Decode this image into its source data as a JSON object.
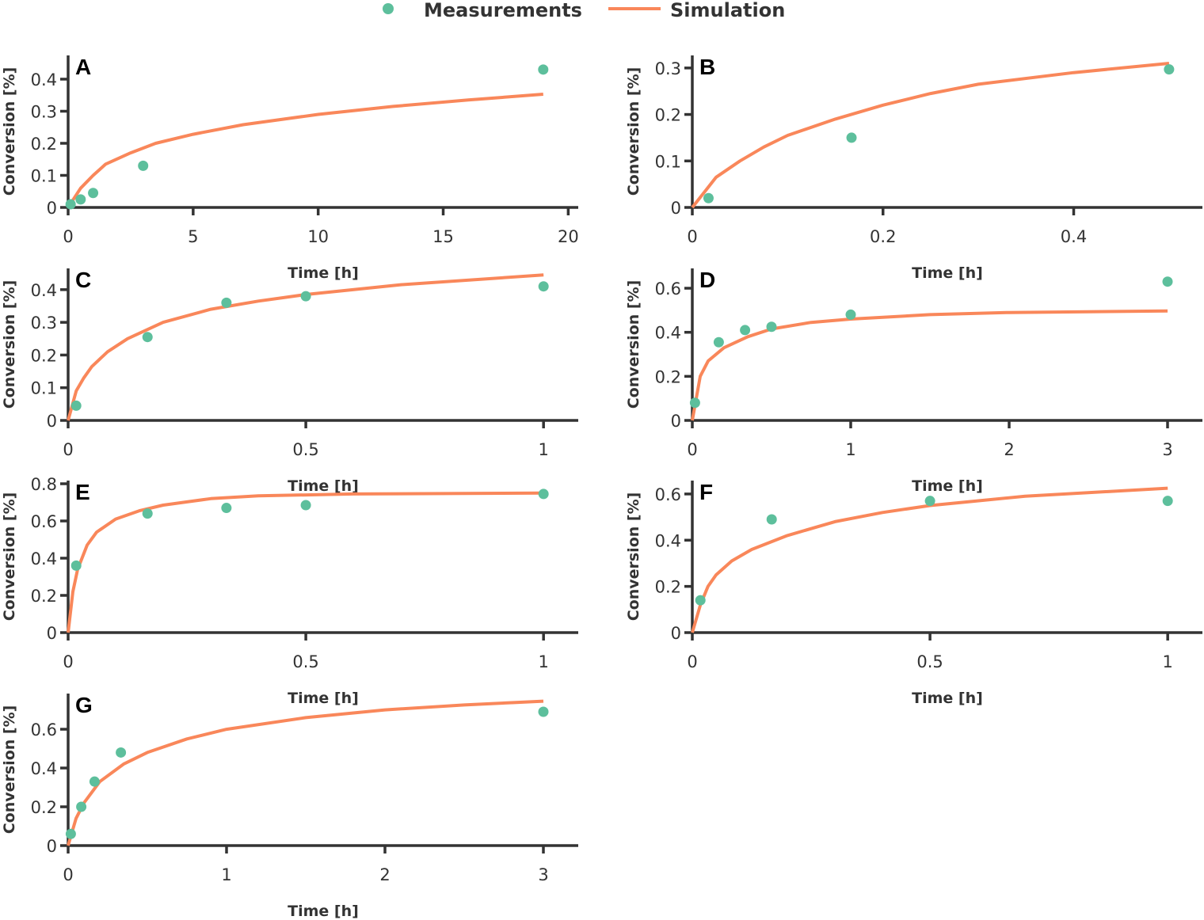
{
  "colors": {
    "measurements": "#5dbf9c",
    "simulation": "#f9875a",
    "axis": "#333333"
  },
  "chart_data": {
    "type": "scatter+line",
    "legend": {
      "placement": "top-center",
      "entries": [
        "Measurements",
        "Simulation"
      ]
    },
    "panels": [
      {
        "label": "A",
        "xlabel": "Time [h]",
        "ylabel": "Conversion [%]",
        "xlim": [
          0,
          20.4
        ],
        "ylim": [
          0,
          0.474
        ],
        "xticks": [
          0,
          5,
          10,
          15,
          20
        ],
        "xtick_labels": [
          "0",
          "5",
          "10",
          "15",
          "20"
        ],
        "yticks": [
          0,
          0.1,
          0.2,
          0.3,
          0.4
        ],
        "ytick_labels": [
          "0",
          "0.1",
          "0.2",
          "0.3",
          "0.4"
        ],
        "measurements": [
          [
            0.1,
            0.01
          ],
          [
            0.5,
            0.025
          ],
          [
            1,
            0.045
          ],
          [
            3,
            0.13
          ],
          [
            19,
            0.43
          ]
        ],
        "simulation": [
          [
            0,
            0
          ],
          [
            0.5,
            0.06
          ],
          [
            1,
            0.1
          ],
          [
            1.5,
            0.135
          ],
          [
            2.5,
            0.17
          ],
          [
            3.5,
            0.2
          ],
          [
            5,
            0.228
          ],
          [
            7,
            0.258
          ],
          [
            10,
            0.29
          ],
          [
            13,
            0.315
          ],
          [
            16,
            0.335
          ],
          [
            19,
            0.353
          ]
        ]
      },
      {
        "label": "B",
        "xlabel": "Time [h]",
        "ylabel": "Conversion [%]",
        "xlim": [
          0,
          0.535
        ],
        "ylim": [
          0,
          0.327
        ],
        "xticks": [
          0,
          0.2,
          0.4
        ],
        "xtick_labels": [
          "0",
          "0.2",
          "0.4"
        ],
        "yticks": [
          0,
          0.1,
          0.2,
          0.3
        ],
        "ytick_labels": [
          "0",
          "0.1",
          "0.2",
          "0.3"
        ],
        "measurements": [
          [
            0.017,
            0.02
          ],
          [
            0.167,
            0.15
          ],
          [
            0.5,
            0.297
          ]
        ],
        "simulation": [
          [
            0,
            0
          ],
          [
            0.025,
            0.065
          ],
          [
            0.05,
            0.1
          ],
          [
            0.075,
            0.13
          ],
          [
            0.1,
            0.155
          ],
          [
            0.15,
            0.19
          ],
          [
            0.2,
            0.22
          ],
          [
            0.25,
            0.245
          ],
          [
            0.3,
            0.265
          ],
          [
            0.4,
            0.29
          ],
          [
            0.5,
            0.31
          ]
        ]
      },
      {
        "label": "C",
        "xlabel": "Time [h]",
        "ylabel": "Conversion [%]",
        "xlim": [
          0,
          1.073
        ],
        "ylim": [
          0,
          0.465
        ],
        "xticks": [
          0,
          0.5,
          1
        ],
        "xtick_labels": [
          "0",
          "0.5",
          "1"
        ],
        "yticks": [
          0,
          0.1,
          0.2,
          0.3,
          0.4
        ],
        "ytick_labels": [
          "0",
          "0.1",
          "0.2",
          "0.3",
          "0.4"
        ],
        "measurements": [
          [
            0.017,
            0.045
          ],
          [
            0.167,
            0.255
          ],
          [
            0.333,
            0.36
          ],
          [
            0.5,
            0.38
          ],
          [
            1,
            0.41
          ]
        ],
        "simulation": [
          [
            0,
            0
          ],
          [
            0.017,
            0.09
          ],
          [
            0.033,
            0.13
          ],
          [
            0.05,
            0.165
          ],
          [
            0.083,
            0.21
          ],
          [
            0.125,
            0.25
          ],
          [
            0.2,
            0.3
          ],
          [
            0.3,
            0.34
          ],
          [
            0.4,
            0.365
          ],
          [
            0.5,
            0.385
          ],
          [
            0.7,
            0.415
          ],
          [
            1,
            0.445
          ]
        ]
      },
      {
        "label": "D",
        "xlabel": "Time [h]",
        "ylabel": "Conversion [%]",
        "xlim": [
          0,
          3.22
        ],
        "ylim": [
          0,
          0.69
        ],
        "xticks": [
          0,
          1,
          2,
          3
        ],
        "xtick_labels": [
          "0",
          "1",
          "2",
          "3"
        ],
        "yticks": [
          0,
          0.2,
          0.4,
          0.6
        ],
        "ytick_labels": [
          "0",
          "0.2",
          "0.4",
          "0.6"
        ],
        "measurements": [
          [
            0.017,
            0.08
          ],
          [
            0.167,
            0.355
          ],
          [
            0.333,
            0.41
          ],
          [
            0.5,
            0.425
          ],
          [
            1,
            0.48
          ],
          [
            3,
            0.63
          ]
        ],
        "simulation": [
          [
            0,
            0
          ],
          [
            0.05,
            0.2
          ],
          [
            0.1,
            0.27
          ],
          [
            0.2,
            0.33
          ],
          [
            0.35,
            0.38
          ],
          [
            0.5,
            0.415
          ],
          [
            0.75,
            0.445
          ],
          [
            1,
            0.46
          ],
          [
            1.5,
            0.48
          ],
          [
            2,
            0.49
          ],
          [
            3,
            0.497
          ]
        ]
      },
      {
        "label": "E",
        "xlabel": "Time [h]",
        "ylabel": "Conversion [%]",
        "xlim": [
          0,
          1.073
        ],
        "ylim": [
          0,
          0.817
        ],
        "xticks": [
          0,
          0.5,
          1
        ],
        "xtick_labels": [
          "0",
          "0.5",
          "1"
        ],
        "yticks": [
          0,
          0.2,
          0.4,
          0.6,
          0.8
        ],
        "ytick_labels": [
          "0",
          "0.2",
          "0.4",
          "0.6",
          "0.8"
        ],
        "measurements": [
          [
            0.017,
            0.36
          ],
          [
            0.167,
            0.64
          ],
          [
            0.333,
            0.67
          ],
          [
            0.5,
            0.685
          ],
          [
            1,
            0.745
          ]
        ],
        "simulation": [
          [
            0,
            0
          ],
          [
            0.01,
            0.22
          ],
          [
            0.02,
            0.34
          ],
          [
            0.04,
            0.47
          ],
          [
            0.06,
            0.54
          ],
          [
            0.1,
            0.61
          ],
          [
            0.15,
            0.655
          ],
          [
            0.2,
            0.685
          ],
          [
            0.3,
            0.72
          ],
          [
            0.4,
            0.735
          ],
          [
            0.6,
            0.745
          ],
          [
            1,
            0.75
          ]
        ]
      },
      {
        "label": "F",
        "xlabel": "Time [h]",
        "ylabel": "Conversion [%]",
        "xlim": [
          0,
          1.073
        ],
        "ylim": [
          0,
          0.658
        ],
        "xticks": [
          0,
          0.5,
          1
        ],
        "xtick_labels": [
          "0",
          "0.5",
          "1"
        ],
        "yticks": [
          0,
          0.2,
          0.4,
          0.6
        ],
        "ytick_labels": [
          "0",
          "0.2",
          "0.4",
          "0.6"
        ],
        "measurements": [
          [
            0.017,
            0.14
          ],
          [
            0.167,
            0.49
          ],
          [
            0.5,
            0.57
          ],
          [
            1,
            0.57
          ]
        ],
        "simulation": [
          [
            0,
            0
          ],
          [
            0.017,
            0.12
          ],
          [
            0.033,
            0.2
          ],
          [
            0.05,
            0.25
          ],
          [
            0.083,
            0.31
          ],
          [
            0.125,
            0.36
          ],
          [
            0.2,
            0.42
          ],
          [
            0.3,
            0.48
          ],
          [
            0.4,
            0.52
          ],
          [
            0.5,
            0.55
          ],
          [
            0.7,
            0.59
          ],
          [
            1,
            0.625
          ]
        ]
      },
      {
        "label": "G",
        "xlabel": "Time [h]",
        "ylabel": "Conversion [%]",
        "xlim": [
          0,
          3.22
        ],
        "ylim": [
          0,
          0.784
        ],
        "xticks": [
          0,
          1,
          2,
          3
        ],
        "xtick_labels": [
          "0",
          "1",
          "2",
          "3"
        ],
        "yticks": [
          0,
          0.2,
          0.4,
          0.6
        ],
        "ytick_labels": [
          "0",
          "0.2",
          "0.4",
          "0.6"
        ],
        "measurements": [
          [
            0.017,
            0.06
          ],
          [
            0.083,
            0.2
          ],
          [
            0.167,
            0.33
          ],
          [
            0.333,
            0.48
          ],
          [
            3,
            0.69
          ]
        ],
        "simulation": [
          [
            0,
            0
          ],
          [
            0.05,
            0.14
          ],
          [
            0.1,
            0.22
          ],
          [
            0.2,
            0.33
          ],
          [
            0.35,
            0.42
          ],
          [
            0.5,
            0.48
          ],
          [
            0.75,
            0.55
          ],
          [
            1,
            0.6
          ],
          [
            1.5,
            0.66
          ],
          [
            2,
            0.7
          ],
          [
            2.5,
            0.725
          ],
          [
            3,
            0.745
          ]
        ]
      }
    ]
  }
}
